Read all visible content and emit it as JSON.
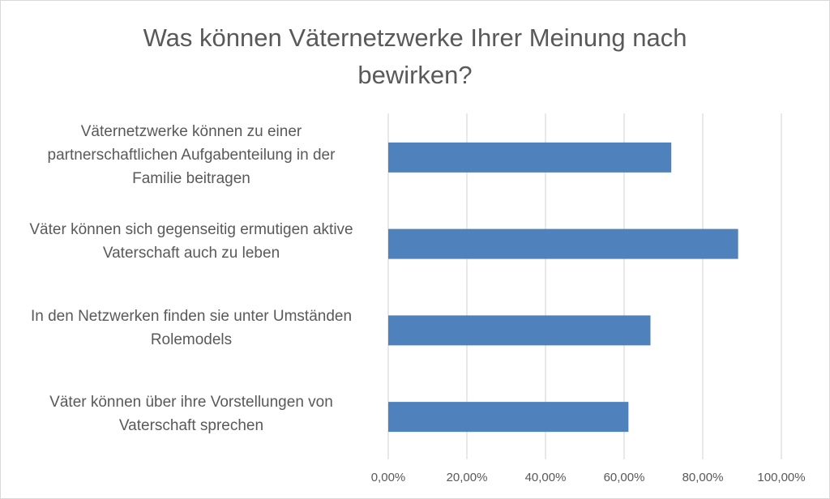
{
  "chart_data": {
    "type": "bar",
    "orientation": "horizontal",
    "title_lines": [
      "Was können Väternetzwerke Ihrer Meinung nach",
      "bewirken?"
    ],
    "categories": [
      [
        "Väternetzwerke können zu einer",
        "partnerschaftlichen Aufgabenteilung in der",
        "Familie beitragen"
      ],
      [
        "Väter können sich gegenseitig ermutigen aktive",
        "Vaterschaft auch zu leben"
      ],
      [
        "In den Netzwerken finden sie unter Umständen",
        "Rolemodels"
      ],
      [
        "Väter können über ihre Vorstellungen von",
        "Vaterschaft sprechen"
      ]
    ],
    "values": [
      0.72,
      0.89,
      0.667,
      0.611
    ],
    "xlim": [
      0,
      1
    ],
    "x_ticks": [
      "0,00%",
      "20,00%",
      "40,00%",
      "60,00%",
      "80,00%",
      "100,00%"
    ],
    "grid": true,
    "legend": "none",
    "bar_color": "#4f81bd",
    "grid_color": "#d9d9d9"
  }
}
